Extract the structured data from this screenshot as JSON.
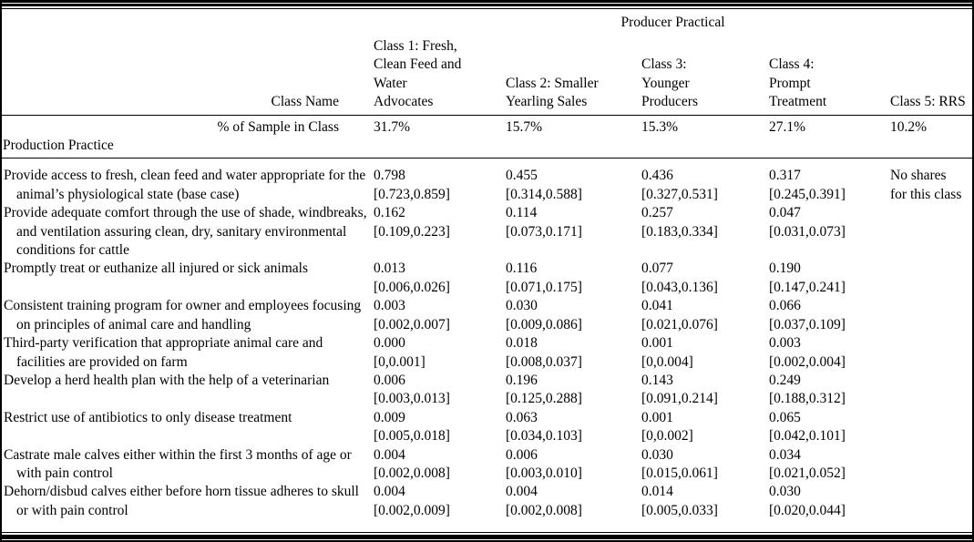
{
  "table": {
    "group_header": "Producer Practical",
    "row_label_header": "Class Name",
    "sample_row_label": "% of Sample in Class",
    "section_label": "Production Practice",
    "classes": [
      {
        "title": "Class 1: Fresh,\nClean Feed and\nWater\nAdvocates",
        "sample_pct": "31.7%"
      },
      {
        "title": "Class 2: Smaller\nYearling Sales",
        "sample_pct": "15.7%"
      },
      {
        "title": "Class 3:\nYounger\nProducers",
        "sample_pct": "15.3%"
      },
      {
        "title": "Class 4:\nPrompt\nTreatment",
        "sample_pct": "27.1%"
      },
      {
        "title": "Class 5: RRS",
        "sample_pct": "10.2%"
      }
    ],
    "practices": [
      {
        "label": "Provide access to fresh, clean feed and water appropriate for the animal’s physiological state (base case)",
        "cells": [
          [
            "0.798",
            "[0.723,0.859]"
          ],
          [
            "0.455",
            "[0.314,0.588]"
          ],
          [
            "0.436",
            "[0.327,0.531]"
          ],
          [
            "0.317",
            "[0.245,0.391]"
          ],
          [
            "No shares",
            "for this class"
          ]
        ]
      },
      {
        "label": "Provide adequate comfort through the use of shade, windbreaks, and ventilation assuring clean, dry, sanitary environmental conditions for cattle",
        "cells": [
          [
            "0.162",
            "[0.109,0.223]"
          ],
          [
            "0.114",
            "[0.073,0.171]"
          ],
          [
            "0.257",
            "[0.183,0.334]"
          ],
          [
            "0.047",
            "[0.031,0.073]"
          ],
          [
            "",
            ""
          ]
        ]
      },
      {
        "label": "Promptly treat or euthanize all injured or sick animals",
        "cells": [
          [
            "0.013",
            "[0.006,0.026]"
          ],
          [
            "0.116",
            "[0.071,0.175]"
          ],
          [
            "0.077",
            "[0.043,0.136]"
          ],
          [
            "0.190",
            "[0.147,0.241]"
          ],
          [
            "",
            ""
          ]
        ]
      },
      {
        "label": "Consistent training program for owner and employees focusing on principles of animal care and handling",
        "cells": [
          [
            "0.003",
            "[0.002,0.007]"
          ],
          [
            "0.030",
            "[0.009,0.086]"
          ],
          [
            "0.041",
            "[0.021,0.076]"
          ],
          [
            "0.066",
            "[0.037,0.109]"
          ],
          [
            "",
            ""
          ]
        ]
      },
      {
        "label": "Third-party verification that appropriate animal care and facilities are provided on farm",
        "cells": [
          [
            "0.000",
            "[0,0.001]"
          ],
          [
            "0.018",
            "[0.008,0.037]"
          ],
          [
            "0.001",
            "[0,0.004]"
          ],
          [
            "0.003",
            "[0.002,0.004]"
          ],
          [
            "",
            ""
          ]
        ]
      },
      {
        "label": "Develop a herd health plan with the help of a veterinarian",
        "cells": [
          [
            "0.006",
            "[0.003,0.013]"
          ],
          [
            "0.196",
            "[0.125,0.288]"
          ],
          [
            "0.143",
            "[0.091,0.214]"
          ],
          [
            "0.249",
            "[0.188,0.312]"
          ],
          [
            "",
            ""
          ]
        ]
      },
      {
        "label": "Restrict use of antibiotics to only disease treatment",
        "cells": [
          [
            "0.009",
            "[0.005,0.018]"
          ],
          [
            "0.063",
            "[0.034,0.103]"
          ],
          [
            "0.001",
            "[0,0.002]"
          ],
          [
            "0.065",
            "[0.042,0.101]"
          ],
          [
            "",
            ""
          ]
        ]
      },
      {
        "label": "Castrate male calves either within the first 3 months of age or with pain control",
        "cells": [
          [
            "0.004",
            "[0.002,0.008]"
          ],
          [
            "0.006",
            "[0.003,0.010]"
          ],
          [
            "0.030",
            "[0.015,0.061]"
          ],
          [
            "0.034",
            "[0.021,0.052]"
          ],
          [
            "",
            ""
          ]
        ]
      },
      {
        "label": "Dehorn/disbud calves either before horn tissue adheres to skull or with pain control",
        "cells": [
          [
            "0.004",
            "[0.002,0.009]"
          ],
          [
            "0.004",
            "[0.002,0.008]"
          ],
          [
            "0.014",
            "[0.005,0.033]"
          ],
          [
            "0.030",
            "[0.020,0.044]"
          ],
          [
            "",
            ""
          ]
        ]
      }
    ]
  }
}
